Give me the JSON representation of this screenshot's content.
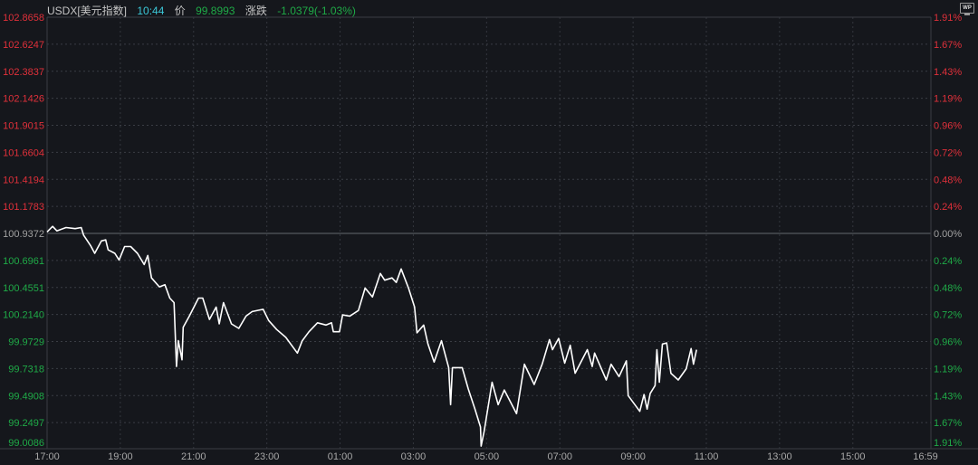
{
  "header": {
    "symbol": "USDX[美元指数]",
    "time": "10:44",
    "price_label": "价",
    "price": "99.8993",
    "change_label": "涨跌",
    "change": "-1.0379(-1.03%)",
    "wp_icon": "WP"
  },
  "colors": {
    "background": "#15171c",
    "up": "#e0303a",
    "down": "#1faa47",
    "neutral": "#a0a0a0",
    "line": "#ffffff",
    "time": "#3cc8d8"
  },
  "chart_data": {
    "type": "line",
    "title": "",
    "base_price": 100.9372,
    "ylim": [
      99.0086,
      102.8658
    ],
    "x_range": [
      "17:00",
      "16:59"
    ],
    "grid": true,
    "y_ticks_left": [
      "102.8658",
      "102.6247",
      "102.3837",
      "102.1426",
      "101.9015",
      "101.6604",
      "101.4194",
      "101.1783",
      "100.9372",
      "100.6961",
      "100.4551",
      "100.2140",
      "99.9729",
      "99.7318",
      "99.4908",
      "99.2497",
      "99.0086"
    ],
    "y_ticks_right": [
      "1.91%",
      "1.67%",
      "1.43%",
      "1.19%",
      "0.96%",
      "0.72%",
      "0.48%",
      "0.24%",
      "0.00%",
      "0.24%",
      "0.48%",
      "0.72%",
      "0.96%",
      "1.19%",
      "1.43%",
      "1.67%",
      "1.91%"
    ],
    "x_ticks": [
      "17:00",
      "19:00",
      "21:00",
      "23:00",
      "01:00",
      "03:00",
      "05:00",
      "07:00",
      "09:00",
      "11:00",
      "13:00",
      "15:00",
      "16:59"
    ],
    "points": [
      [
        "17:00",
        100.95
      ],
      [
        "17:09",
        101.0
      ],
      [
        "17:16",
        100.96
      ],
      [
        "17:31",
        100.99
      ],
      [
        "17:46",
        100.98
      ],
      [
        "17:56",
        100.99
      ],
      [
        "18:00",
        100.92
      ],
      [
        "18:11",
        100.83
      ],
      [
        "18:18",
        100.76
      ],
      [
        "18:29",
        100.87
      ],
      [
        "18:36",
        100.88
      ],
      [
        "18:40",
        100.79
      ],
      [
        "18:51",
        100.76
      ],
      [
        "18:58",
        100.7
      ],
      [
        "19:07",
        100.82
      ],
      [
        "19:17",
        100.82
      ],
      [
        "19:28",
        100.76
      ],
      [
        "19:39",
        100.66
      ],
      [
        "19:45",
        100.74
      ],
      [
        "19:51",
        100.54
      ],
      [
        "20:04",
        100.46
      ],
      [
        "20:13",
        100.48
      ],
      [
        "20:21",
        100.36
      ],
      [
        "20:28",
        100.32
      ],
      [
        "20:32",
        99.75
      ],
      [
        "20:35",
        99.98
      ],
      [
        "20:41",
        99.81
      ],
      [
        "20:43",
        100.1
      ],
      [
        "20:53",
        100.2
      ],
      [
        "21:08",
        100.36
      ],
      [
        "21:15",
        100.36
      ],
      [
        "21:26",
        100.17
      ],
      [
        "21:37",
        100.28
      ],
      [
        "21:42",
        100.13
      ],
      [
        "21:49",
        100.32
      ],
      [
        "22:02",
        100.13
      ],
      [
        "22:14",
        100.09
      ],
      [
        "22:26",
        100.2
      ],
      [
        "22:36",
        100.24
      ],
      [
        "22:54",
        100.26
      ],
      [
        "23:03",
        100.16
      ],
      [
        "23:16",
        100.08
      ],
      [
        "23:31",
        100.01
      ],
      [
        "23:50",
        99.87
      ],
      [
        "23:58",
        99.98
      ],
      [
        "00:09",
        100.06
      ],
      [
        "00:23",
        100.14
      ],
      [
        "00:37",
        100.12
      ],
      [
        "00:46",
        100.14
      ],
      [
        "00:49",
        100.06
      ],
      [
        "00:59",
        100.06
      ],
      [
        "01:04",
        100.21
      ],
      [
        "01:16",
        100.2
      ],
      [
        "01:30",
        100.25
      ],
      [
        "01:41",
        100.45
      ],
      [
        "01:53",
        100.37
      ],
      [
        "02:06",
        100.58
      ],
      [
        "02:13",
        100.52
      ],
      [
        "02:25",
        100.54
      ],
      [
        "02:32",
        100.5
      ],
      [
        "02:40",
        100.62
      ],
      [
        "02:52",
        100.45
      ],
      [
        "03:02",
        100.28
      ],
      [
        "03:06",
        100.05
      ],
      [
        "03:17",
        100.12
      ],
      [
        "03:24",
        99.95
      ],
      [
        "03:34",
        99.79
      ],
      [
        "03:46",
        99.98
      ],
      [
        "03:58",
        99.74
      ],
      [
        "04:01",
        99.41
      ],
      [
        "04:04",
        99.74
      ],
      [
        "04:20",
        99.74
      ],
      [
        "04:30",
        99.55
      ],
      [
        "04:41",
        99.37
      ],
      [
        "04:50",
        99.21
      ],
      [
        "04:51",
        99.04
      ],
      [
        "04:56",
        99.17
      ],
      [
        "05:09",
        99.61
      ],
      [
        "05:19",
        99.41
      ],
      [
        "05:29",
        99.54
      ],
      [
        "05:49",
        99.33
      ],
      [
        "06:02",
        99.77
      ],
      [
        "06:18",
        99.59
      ],
      [
        "06:31",
        99.77
      ],
      [
        "06:43",
        99.99
      ],
      [
        "06:48",
        99.9
      ],
      [
        "06:58",
        100.0
      ],
      [
        "07:08",
        99.78
      ],
      [
        "07:17",
        99.94
      ],
      [
        "07:25",
        99.69
      ],
      [
        "07:45",
        99.9
      ],
      [
        "07:53",
        99.75
      ],
      [
        "07:57",
        99.87
      ],
      [
        "08:16",
        99.63
      ],
      [
        "08:24",
        99.77
      ],
      [
        "08:37",
        99.66
      ],
      [
        "08:49",
        99.8
      ],
      [
        "08:52",
        99.49
      ],
      [
        "09:11",
        99.35
      ],
      [
        "09:18",
        99.5
      ],
      [
        "09:23",
        99.37
      ],
      [
        "09:28",
        99.51
      ],
      [
        "09:36",
        99.58
      ],
      [
        "09:39",
        99.9
      ],
      [
        "09:43",
        99.61
      ],
      [
        "09:48",
        99.95
      ],
      [
        "09:55",
        99.96
      ],
      [
        "10:02",
        99.69
      ],
      [
        "10:14",
        99.63
      ],
      [
        "10:27",
        99.73
      ],
      [
        "10:35",
        99.91
      ],
      [
        "10:39",
        99.77
      ],
      [
        "10:44",
        99.8993
      ]
    ]
  }
}
